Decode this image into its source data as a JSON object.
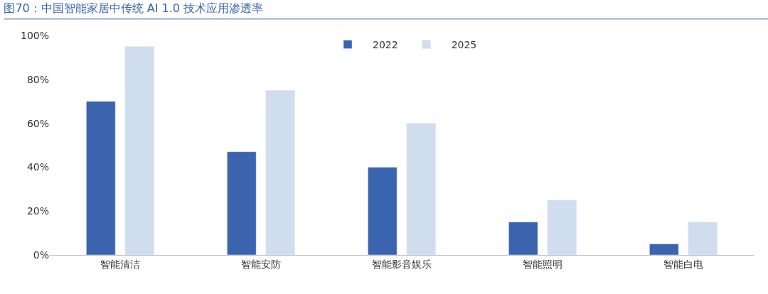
{
  "chart_data": {
    "type": "bar",
    "title": "图70：中国智能家居中传统 AI 1.0 技术应用渗透率",
    "categories": [
      "智能清洁",
      "智能安防",
      "智能影音娱乐",
      "智能照明",
      "智能白电"
    ],
    "series": [
      {
        "name": "2022",
        "color": "#3a64ae",
        "values": [
          70,
          47,
          40,
          15,
          5
        ]
      },
      {
        "name": "2025",
        "color": "#d0ddef",
        "values": [
          95,
          75,
          60,
          25,
          15
        ]
      }
    ],
    "ylim": [
      0,
      100
    ],
    "yticks": [
      {
        "value": 0,
        "label": "0%"
      },
      {
        "value": 20,
        "label": "20%"
      },
      {
        "value": 40,
        "label": "40%"
      },
      {
        "value": 60,
        "label": "60%"
      },
      {
        "value": 80,
        "label": "80%"
      },
      {
        "value": 100,
        "label": "100%"
      }
    ],
    "grid": false,
    "legend": "top"
  }
}
